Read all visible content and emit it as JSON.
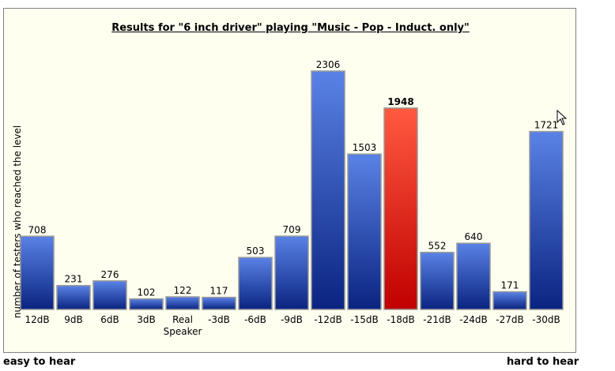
{
  "chart_data": {
    "type": "bar",
    "title": "Results for \"6 inch driver\" playing \"Music - Pop - Induct. only\"",
    "ylabel": "number of testers who reached the level",
    "categories": [
      "12dB",
      "9dB",
      "6dB",
      "3dB",
      "Real Speaker",
      "-3dB",
      "-6dB",
      "-9dB",
      "-12dB",
      "-15dB",
      "-18dB",
      "-21dB",
      "-24dB",
      "-27dB",
      "-30dB"
    ],
    "values": [
      708,
      231,
      276,
      102,
      122,
      117,
      503,
      709,
      2306,
      1503,
      1948,
      552,
      640,
      171,
      1721
    ],
    "highlight_index": 10,
    "ylim": [
      0,
      2306
    ],
    "grid": false,
    "legend": "none",
    "colors": {
      "bar_top": "#5A82E6",
      "bar_bottom": "#0A2480",
      "highlight_top": "#FF5A40",
      "highlight_bottom": "#C00000",
      "panel_background": "#FFFFF0"
    }
  },
  "footer": {
    "left": "easy to hear",
    "right": "hard to hear"
  }
}
